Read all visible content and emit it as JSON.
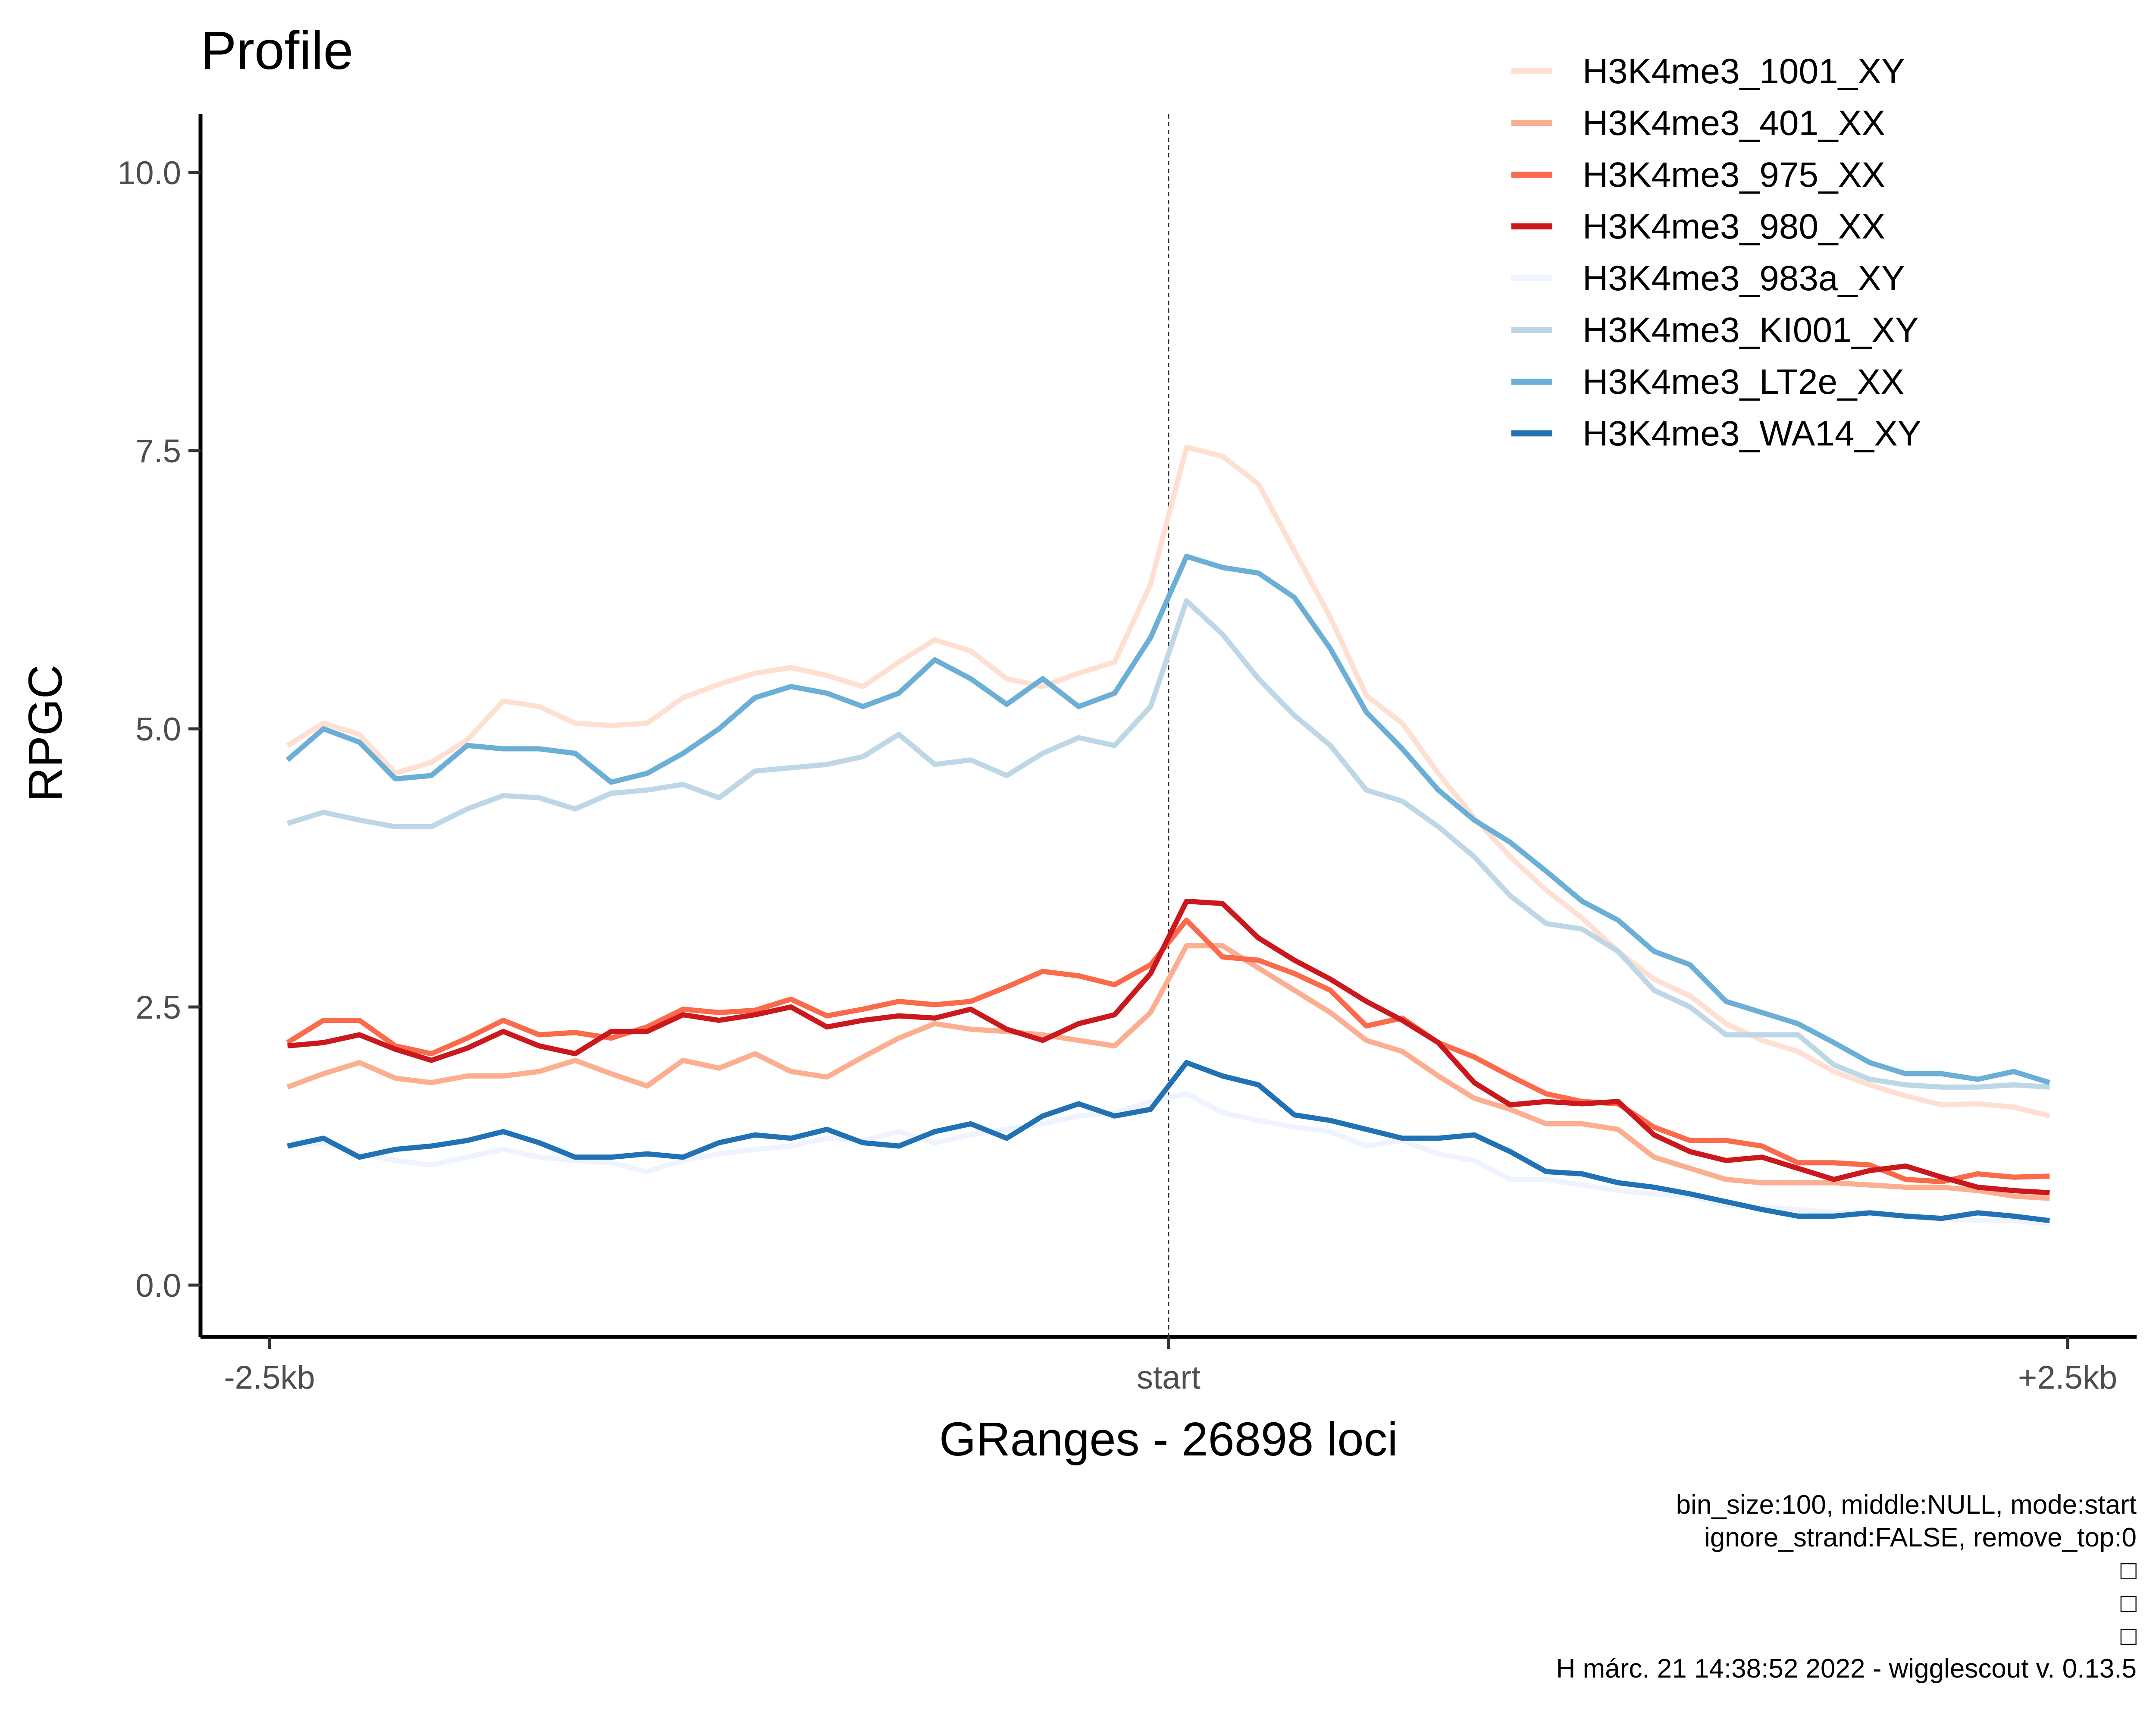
{
  "chart_data": {
    "type": "line",
    "title": "Profile",
    "xlabel": "GRanges - 26898 loci",
    "ylabel": "RPGC",
    "xlim": [
      -2500,
      2500
    ],
    "ylim": [
      -0.5,
      10.5
    ],
    "x_ticks": [
      {
        "value": -2500,
        "label": "-2.5kb"
      },
      {
        "value": 0,
        "label": "start"
      },
      {
        "value": 2500,
        "label": "+2.5kb"
      }
    ],
    "y_ticks": [
      {
        "value": 0,
        "label": "0.0"
      },
      {
        "value": 2.5,
        "label": "2.5"
      },
      {
        "value": 5,
        "label": "5.0"
      },
      {
        "value": 7.5,
        "label": "7.5"
      },
      {
        "value": 10,
        "label": "10.0"
      }
    ],
    "vline": 0,
    "grid": false,
    "legend_position": "top-right",
    "x": [
      -2450,
      -2350,
      -2250,
      -2150,
      -2050,
      -1950,
      -1850,
      -1750,
      -1650,
      -1550,
      -1450,
      -1350,
      -1250,
      -1150,
      -1050,
      -950,
      -850,
      -750,
      -650,
      -550,
      -450,
      -350,
      -250,
      -150,
      -50,
      50,
      150,
      250,
      350,
      450,
      550,
      650,
      750,
      850,
      950,
      1050,
      1150,
      1250,
      1350,
      1450,
      1550,
      1650,
      1750,
      1850,
      1950,
      2050,
      2150,
      2250,
      2350,
      2450
    ],
    "series": [
      {
        "name": "H3K4me3_1001_XY",
        "color": "#fee0d2",
        "values": [
          4.85,
          5.05,
          4.95,
          4.6,
          4.7,
          4.9,
          5.25,
          5.2,
          5.05,
          5.03,
          5.05,
          5.28,
          5.4,
          5.5,
          5.55,
          5.48,
          5.38,
          5.6,
          5.8,
          5.7,
          5.45,
          5.38,
          5.5,
          5.6,
          6.3,
          7.53,
          7.45,
          7.2,
          6.6,
          6.0,
          5.3,
          5.05,
          4.6,
          4.2,
          3.85,
          3.55,
          3.3,
          3.0,
          2.75,
          2.6,
          2.35,
          2.2,
          2.1,
          1.92,
          1.8,
          1.7,
          1.62,
          1.63,
          1.6,
          1.52
        ]
      },
      {
        "name": "H3K4me3_401_XX",
        "color": "#fcae91",
        "values": [
          1.78,
          1.9,
          2.0,
          1.86,
          1.82,
          1.88,
          1.88,
          1.92,
          2.02,
          1.9,
          1.79,
          2.02,
          1.95,
          2.08,
          1.92,
          1.87,
          2.05,
          2.22,
          2.35,
          2.3,
          2.28,
          2.25,
          2.2,
          2.15,
          2.45,
          3.05,
          3.05,
          2.85,
          2.65,
          2.45,
          2.2,
          2.1,
          1.88,
          1.68,
          1.58,
          1.45,
          1.45,
          1.4,
          1.15,
          1.05,
          0.95,
          0.92,
          0.92,
          0.92,
          0.9,
          0.88,
          0.88,
          0.85,
          0.8,
          0.78
        ]
      },
      {
        "name": "H3K4me3_975_XX",
        "color": "#fb6a4a",
        "values": [
          2.18,
          2.38,
          2.38,
          2.15,
          2.08,
          2.22,
          2.38,
          2.25,
          2.27,
          2.22,
          2.32,
          2.48,
          2.45,
          2.47,
          2.57,
          2.42,
          2.48,
          2.55,
          2.52,
          2.55,
          2.68,
          2.82,
          2.78,
          2.7,
          2.88,
          3.28,
          2.95,
          2.92,
          2.8,
          2.65,
          2.33,
          2.4,
          2.18,
          2.05,
          1.88,
          1.72,
          1.65,
          1.63,
          1.42,
          1.3,
          1.3,
          1.25,
          1.1,
          1.1,
          1.08,
          0.95,
          0.93,
          1.0,
          0.97,
          0.98
        ]
      },
      {
        "name": "H3K4me3_980_XX",
        "color": "#cb181d",
        "values": [
          2.15,
          2.18,
          2.25,
          2.12,
          2.02,
          2.13,
          2.28,
          2.15,
          2.08,
          2.28,
          2.28,
          2.43,
          2.38,
          2.43,
          2.5,
          2.32,
          2.38,
          2.42,
          2.4,
          2.48,
          2.3,
          2.2,
          2.35,
          2.43,
          2.8,
          3.45,
          3.43,
          3.12,
          2.92,
          2.75,
          2.55,
          2.38,
          2.18,
          1.82,
          1.62,
          1.65,
          1.63,
          1.65,
          1.35,
          1.2,
          1.12,
          1.15,
          1.05,
          0.95,
          1.03,
          1.07,
          0.97,
          0.88,
          0.85,
          0.83
        ]
      },
      {
        "name": "H3K4me3_983a_XY",
        "color": "#eff3ff",
        "values": [
          1.25,
          1.28,
          1.18,
          1.12,
          1.08,
          1.15,
          1.22,
          1.15,
          1.12,
          1.1,
          1.02,
          1.12,
          1.18,
          1.22,
          1.25,
          1.32,
          1.3,
          1.38,
          1.28,
          1.35,
          1.4,
          1.45,
          1.52,
          1.55,
          1.65,
          1.72,
          1.55,
          1.48,
          1.42,
          1.38,
          1.25,
          1.3,
          1.18,
          1.12,
          0.95,
          0.95,
          0.9,
          0.85,
          0.82,
          0.8,
          0.72,
          0.7,
          0.68,
          0.65,
          0.65,
          0.62,
          0.6,
          0.58,
          0.58,
          0.55
        ]
      },
      {
        "name": "H3K4me3_KI001_XY",
        "color": "#bdd7e7",
        "values": [
          4.15,
          4.25,
          4.18,
          4.12,
          4.12,
          4.28,
          4.4,
          4.38,
          4.28,
          4.42,
          4.45,
          4.5,
          4.38,
          4.62,
          4.65,
          4.68,
          4.75,
          4.95,
          4.68,
          4.72,
          4.58,
          4.78,
          4.92,
          4.85,
          5.2,
          6.15,
          5.85,
          5.45,
          5.12,
          4.85,
          4.45,
          4.35,
          4.12,
          3.85,
          3.5,
          3.25,
          3.2,
          3.0,
          2.65,
          2.5,
          2.25,
          2.25,
          2.25,
          1.98,
          1.85,
          1.8,
          1.78,
          1.78,
          1.8,
          1.78
        ]
      },
      {
        "name": "H3K4me3_LT2e_XX",
        "color": "#6baed6",
        "values": [
          4.72,
          5.0,
          4.88,
          4.55,
          4.58,
          4.85,
          4.82,
          4.82,
          4.78,
          4.52,
          4.6,
          4.78,
          5.0,
          5.28,
          5.38,
          5.32,
          5.2,
          5.32,
          5.62,
          5.45,
          5.22,
          5.45,
          5.2,
          5.32,
          5.82,
          6.55,
          6.45,
          6.4,
          6.18,
          5.72,
          5.15,
          4.82,
          4.45,
          4.18,
          3.98,
          3.72,
          3.45,
          3.28,
          3.0,
          2.88,
          2.55,
          2.45,
          2.35,
          2.18,
          2.0,
          1.9,
          1.9,
          1.85,
          1.92,
          1.82
        ]
      },
      {
        "name": "H3K4me3_WA14_XY",
        "color": "#2171b5",
        "values": [
          1.25,
          1.32,
          1.15,
          1.22,
          1.25,
          1.3,
          1.38,
          1.28,
          1.15,
          1.15,
          1.18,
          1.15,
          1.28,
          1.35,
          1.32,
          1.4,
          1.28,
          1.25,
          1.38,
          1.45,
          1.32,
          1.52,
          1.63,
          1.52,
          1.58,
          2.0,
          1.88,
          1.8,
          1.53,
          1.48,
          1.4,
          1.32,
          1.32,
          1.35,
          1.2,
          1.02,
          1.0,
          0.92,
          0.88,
          0.82,
          0.75,
          0.68,
          0.62,
          0.62,
          0.65,
          0.62,
          0.6,
          0.65,
          0.62,
          0.58
        ]
      }
    ],
    "caption": [
      "bin_size:100, middle:NULL, mode:start",
      "ignore_strand:FALSE, remove_top:0",
      "□",
      "□",
      "□",
      "H márc. 21 14:38:52 2022 - wigglescout v. 0.13.5"
    ]
  }
}
